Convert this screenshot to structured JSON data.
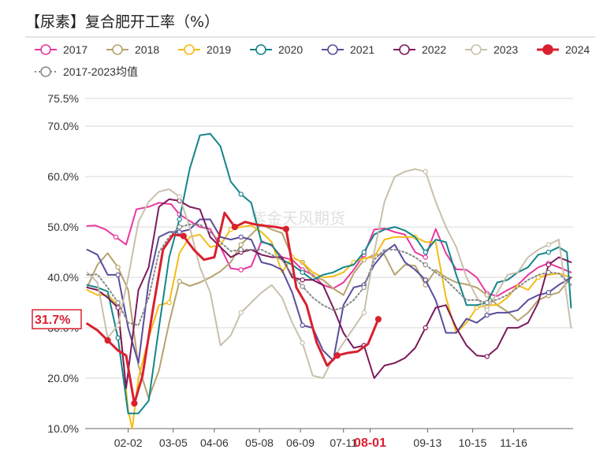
{
  "chart_data": {
    "type": "line",
    "title": "【尿素】复合肥开工率（%）",
    "x_ticks": [
      "02-02",
      "03-05",
      "04-06",
      "05-08",
      "06-09",
      "07-11",
      "08-01",
      "09-13",
      "10-15",
      "11-16"
    ],
    "x_tick_positions": [
      2.1,
      3.2,
      4.2,
      5.3,
      6.3,
      7.35,
      8.0,
      9.4,
      10.5,
      11.5
    ],
    "highlight_tick": "08-01",
    "x_range": [
      1.05,
      12.95
    ],
    "ylim": [
      10,
      75.5
    ],
    "y_ticks": [
      10,
      20,
      30,
      40,
      50,
      60,
      70,
      75.5
    ],
    "y_tick_labels": [
      "10.0%",
      "20.0%",
      "30.0%",
      "40.0%",
      "50.0%",
      "60.0%",
      "70.0%",
      "75.5%"
    ],
    "badge_label": "31.7%",
    "badge_value": 31.7,
    "watermark": "紫金天风期货",
    "grid": "horizontal",
    "legend_position": "top",
    "series": [
      {
        "name": "2017",
        "color": "#e8389e",
        "marker": "open",
        "width": 2,
        "x": [
          1.1,
          1.3,
          1.55,
          1.8,
          2.05,
          2.3,
          2.6,
          2.85,
          3.15,
          3.35,
          3.6,
          3.85,
          4.1,
          4.35,
          4.6,
          4.85,
          5.1,
          5.35,
          5.6,
          5.85,
          6.1,
          6.35,
          6.6,
          6.85,
          7.1,
          7.35,
          7.6,
          7.85,
          8.1,
          8.35,
          8.6,
          8.85,
          9.1,
          9.35,
          9.6,
          9.85,
          10.1,
          10.35,
          10.6,
          10.85,
          11.1,
          11.35,
          11.6,
          11.85,
          12.1,
          12.35,
          12.6,
          12.9
        ],
        "y": [
          50.2,
          50.3,
          49.5,
          48,
          46.5,
          53.5,
          54,
          54.8,
          54.5,
          52.5,
          51.2,
          50,
          49.6,
          46,
          41.8,
          41.5,
          42.2,
          47.2,
          46.3,
          44,
          43.5,
          41.5,
          40.5,
          38.5,
          37.8,
          39,
          41.5,
          44.5,
          49.5,
          49.7,
          49,
          48.5,
          45,
          44,
          49.6,
          44.8,
          41.6,
          41.5,
          40,
          36.8,
          36.3,
          37.5,
          38.5,
          40.5,
          42,
          42.8,
          42,
          41
        ]
      },
      {
        "name": "2018",
        "color": "#b5a36e",
        "marker": "open",
        "width": 2,
        "x": [
          1.1,
          1.35,
          1.6,
          1.85,
          2.1,
          2.35,
          2.6,
          2.85,
          3.1,
          3.35,
          3.6,
          3.85,
          4.1,
          4.35,
          4.6,
          4.85,
          5.1,
          5.35,
          5.6,
          5.85,
          6.1,
          6.35,
          6.6,
          6.85,
          7.1,
          7.35,
          7.6,
          7.85,
          8.1,
          8.35,
          8.6,
          8.85,
          9.1,
          9.35,
          9.6,
          9.85,
          10.1,
          10.35,
          10.6,
          10.85,
          11.1,
          11.35,
          11.6,
          11.85,
          12.1,
          12.35,
          12.6,
          12.9
        ],
        "y": [
          38,
          42.5,
          44.8,
          42,
          37.5,
          22.5,
          16,
          21.5,
          31,
          39.2,
          38.3,
          39,
          40,
          41.2,
          43,
          46.5,
          48.5,
          50.5,
          49.5,
          48.8,
          44,
          43,
          40.2,
          39.5,
          37.8,
          36.5,
          40.8,
          43.5,
          44.5,
          44.5,
          40.5,
          42.5,
          42.3,
          38.5,
          41.5,
          40,
          39,
          38.6,
          38,
          36.5,
          34.5,
          33.2,
          31.4,
          33,
          35.5,
          36.4,
          37,
          40
        ]
      },
      {
        "name": "2019",
        "color": "#f4bc14",
        "marker": "open",
        "width": 2,
        "x": [
          1.1,
          1.35,
          1.6,
          1.85,
          2.1,
          2.2,
          2.35,
          2.6,
          2.85,
          3.1,
          3.35,
          3.6,
          3.85,
          4.1,
          4.35,
          4.6,
          4.85,
          5.1,
          5.35,
          5.6,
          5.85,
          6.1,
          6.35,
          6.6,
          6.85,
          7.1,
          7.35,
          7.6,
          7.85,
          8.1,
          8.35,
          8.6,
          8.85,
          9.1,
          9.35,
          9.6,
          9.85,
          10.1,
          10.35,
          10.6,
          10.85,
          11.1,
          11.35,
          11.6,
          11.85,
          12.1,
          12.35,
          12.6,
          12.9
        ],
        "y": [
          37.5,
          36.5,
          36.5,
          34.5,
          13.5,
          10,
          20,
          28,
          34.5,
          35,
          44.8,
          48,
          48.5,
          46,
          46.5,
          49.5,
          50,
          50.3,
          49,
          47,
          41,
          44,
          43,
          41,
          40,
          40.2,
          41,
          43,
          43.8,
          44,
          47.5,
          48,
          48,
          48,
          47,
          47,
          36,
          29,
          31,
          34,
          34.5,
          34.5,
          36,
          38.5,
          37.5,
          40,
          40.5,
          40.8,
          40
        ]
      },
      {
        "name": "2020",
        "color": "#13858a",
        "marker": "open",
        "width": 2,
        "x": [
          1.1,
          1.35,
          1.6,
          1.85,
          2.1,
          2.35,
          2.6,
          2.85,
          3.1,
          3.35,
          3.6,
          3.85,
          4.1,
          4.35,
          4.6,
          4.85,
          5.1,
          5.35,
          5.6,
          5.85,
          6.1,
          6.35,
          6.6,
          6.85,
          7.1,
          7.35,
          7.6,
          7.85,
          8.1,
          8.35,
          8.6,
          8.85,
          9.1,
          9.35,
          9.6,
          9.85,
          10.1,
          10.35,
          10.6,
          10.85,
          11.1,
          11.35,
          11.6,
          11.85,
          12.1,
          12.35,
          12.6,
          12.8,
          12.9
        ],
        "y": [
          38.5,
          38,
          37.2,
          28,
          13,
          13,
          15.5,
          30,
          44,
          51.5,
          61.5,
          68.2,
          68.5,
          66,
          59,
          56.5,
          54.8,
          47,
          46.5,
          43.5,
          42.5,
          41,
          39.5,
          40.5,
          41,
          42,
          42.5,
          45,
          48.5,
          49.5,
          50,
          49.3,
          48,
          45,
          47.5,
          47,
          40.5,
          34.5,
          34.5,
          35,
          39,
          39.5,
          41,
          42,
          44.5,
          45,
          46,
          45,
          34
        ]
      },
      {
        "name": "2021",
        "color": "#5a4d9c",
        "marker": "open",
        "width": 2,
        "x": [
          1.1,
          1.35,
          1.6,
          1.85,
          2.1,
          2.35,
          2.6,
          2.85,
          3.1,
          3.35,
          3.6,
          3.85,
          4.1,
          4.35,
          4.6,
          4.85,
          5.1,
          5.35,
          5.6,
          5.85,
          6.1,
          6.35,
          6.6,
          6.85,
          7.1,
          7.35,
          7.6,
          7.85,
          8.1,
          8.35,
          8.6,
          8.85,
          9.1,
          9.35,
          9.6,
          9.85,
          10.1,
          10.35,
          10.6,
          10.85,
          11.1,
          11.35,
          11.6,
          11.85,
          12.1,
          12.35,
          12.6,
          12.9
        ],
        "y": [
          45.5,
          44.5,
          40.5,
          40.5,
          30,
          23,
          39,
          48,
          49,
          49,
          49.5,
          51.5,
          51.5,
          48,
          47.5,
          48,
          47.5,
          43,
          42.5,
          41.5,
          37,
          30.5,
          30,
          25.5,
          23.5,
          34.5,
          38,
          38.5,
          42.5,
          45,
          46.5,
          43,
          41.5,
          39.5,
          35.5,
          29,
          29,
          31.8,
          31,
          32.5,
          33,
          33,
          33.5,
          35.5,
          36.5,
          37,
          38.5,
          40
        ]
      },
      {
        "name": "2022",
        "color": "#7c1a5c",
        "marker": "open",
        "width": 2,
        "x": [
          1.1,
          1.35,
          1.6,
          1.85,
          2.05,
          2.35,
          2.6,
          2.85,
          3.1,
          3.35,
          3.6,
          3.85,
          4.1,
          4.35,
          4.6,
          4.85,
          5.1,
          5.35,
          5.6,
          5.85,
          6.1,
          6.35,
          6.6,
          6.85,
          7.1,
          7.35,
          7.6,
          7.85,
          8.1,
          8.35,
          8.6,
          8.85,
          9.1,
          9.35,
          9.6,
          9.85,
          10.1,
          10.35,
          10.6,
          10.85,
          11.1,
          11.35,
          11.6,
          11.85,
          12.1,
          12.35,
          12.6,
          12.9
        ],
        "y": [
          38,
          37.5,
          36,
          34,
          18,
          37.5,
          42,
          54,
          55.5,
          55.2,
          54,
          53.5,
          48,
          46,
          44,
          45,
          45.5,
          44.5,
          44,
          44,
          40,
          39.5,
          39.5,
          38.5,
          34,
          29,
          26,
          26.5,
          20,
          22.5,
          23,
          24,
          26,
          30,
          34,
          34.5,
          30,
          26.5,
          24.5,
          24.3,
          26,
          30,
          30,
          31,
          35,
          42.5,
          44,
          43
        ]
      },
      {
        "name": "2023",
        "color": "#c9c0ae",
        "marker": "open",
        "width": 2,
        "x": [
          1.1,
          1.35,
          1.6,
          1.85,
          2.1,
          2.35,
          2.6,
          2.85,
          3.1,
          3.35,
          3.6,
          3.85,
          4.1,
          4.35,
          4.6,
          4.85,
          5.1,
          5.35,
          5.6,
          5.85,
          6.1,
          6.35,
          6.6,
          6.85,
          7.1,
          7.35,
          7.6,
          7.85,
          8.1,
          8.35,
          8.6,
          8.85,
          9.1,
          9.35,
          9.6,
          9.85,
          10.1,
          10.35,
          10.6,
          10.85,
          11.1,
          11.35,
          11.6,
          11.85,
          12.1,
          12.35,
          12.6,
          12.9
        ],
        "y": [
          41,
          39,
          28,
          30.5,
          40,
          51,
          55,
          57,
          57.5,
          56,
          50,
          42,
          37,
          26.5,
          28.5,
          33,
          35,
          37,
          38.5,
          36,
          31,
          27,
          20.5,
          20,
          24,
          27,
          30,
          33,
          45,
          55,
          60,
          61,
          61.5,
          61,
          55,
          50,
          46,
          40,
          36,
          33.5,
          37,
          40.5,
          41,
          44,
          45.5,
          46.5,
          47.5,
          30
        ]
      },
      {
        "name": "2024",
        "color": "#d9202f",
        "marker": "filled",
        "width": 3,
        "x": [
          1.1,
          1.35,
          1.6,
          1.85,
          2.05,
          2.25,
          2.45,
          2.7,
          2.95,
          3.2,
          3.45,
          3.7,
          3.95,
          4.2,
          4.45,
          4.7,
          4.95,
          5.2,
          5.45,
          5.7,
          5.95,
          6.2,
          6.45,
          6.7,
          6.95,
          7.2,
          7.45,
          7.7,
          7.95,
          8.2
        ],
        "y": [
          30.8,
          29.5,
          27.5,
          25.5,
          24.5,
          15,
          20.5,
          33.5,
          45.5,
          48.5,
          48.2,
          45.5,
          43.5,
          44,
          52.8,
          50,
          51,
          50.5,
          50.2,
          50,
          49.6,
          38,
          34.5,
          27,
          22.5,
          24.5,
          25,
          25.3,
          26.8,
          31.7
        ]
      },
      {
        "name": "2017-2023均值",
        "color": "#8a8a8a",
        "marker": "open",
        "width": 2,
        "dash": true,
        "x": [
          1.1,
          1.35,
          1.6,
          1.85,
          2.1,
          2.35,
          2.6,
          2.85,
          3.1,
          3.35,
          3.6,
          3.85,
          4.1,
          4.35,
          4.6,
          4.85,
          5.1,
          5.35,
          5.6,
          5.85,
          6.1,
          6.35,
          6.6,
          6.85,
          7.1,
          7.35,
          7.6,
          7.85,
          8.1,
          8.35,
          8.6,
          8.85,
          9.1,
          9.35,
          9.6,
          9.85,
          10.1,
          10.35,
          10.6,
          10.85,
          11.1,
          11.35,
          11.6,
          11.85,
          12.1,
          12.35,
          12.6,
          12.9
        ],
        "y": [
          40.5,
          40.6,
          38,
          35,
          31,
          30.5,
          36,
          45,
          48,
          50,
          50.5,
          50.5,
          49,
          47,
          45.2,
          45.5,
          45.5,
          45.5,
          44.5,
          43.5,
          40.5,
          38.2,
          36,
          34.5,
          33.5,
          34,
          35.5,
          38,
          43.5,
          45.5,
          45.5,
          45,
          44,
          42.5,
          41,
          39.5,
          37.5,
          35.5,
          35.5,
          35,
          35.6,
          36.5,
          38,
          39.5,
          40.5,
          41,
          40.8,
          38.5
        ]
      }
    ]
  }
}
